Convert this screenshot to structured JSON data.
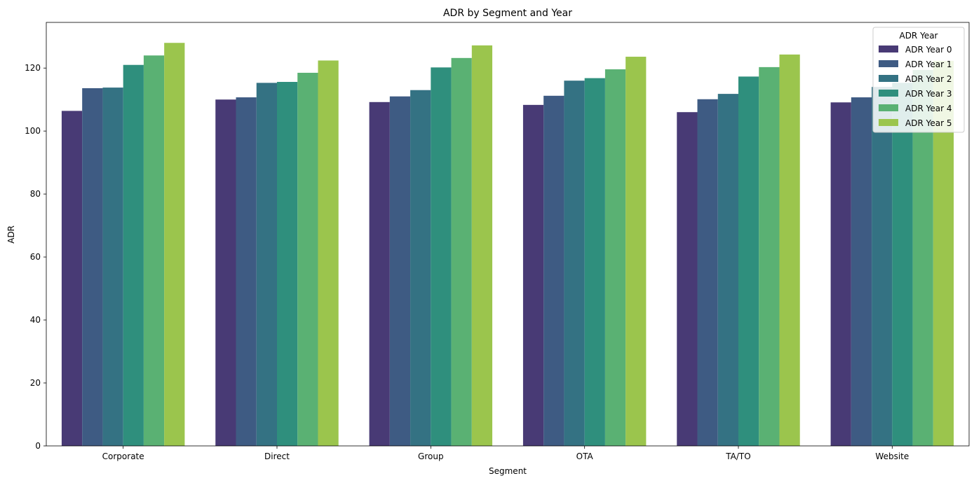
{
  "chart_data": {
    "type": "bar",
    "title": "ADR by Segment and Year",
    "xlabel": "Segment",
    "ylabel": "ADR",
    "ylim": [
      0,
      134.5
    ],
    "yticks": [
      0,
      20,
      40,
      60,
      80,
      100,
      120
    ],
    "categories": [
      "Corporate",
      "Direct",
      "Group",
      "OTA",
      "TA/TO",
      "Website"
    ],
    "legend": {
      "title": "ADR Year",
      "position": "top-right"
    },
    "series": [
      {
        "name": "ADR Year 0",
        "color": "#483a75",
        "values": [
          106.4,
          110.0,
          109.2,
          108.3,
          106.0,
          109.1
        ]
      },
      {
        "name": "ADR Year 1",
        "color": "#3e5b83",
        "values": [
          113.6,
          110.7,
          111.0,
          111.2,
          110.1,
          110.7
        ]
      },
      {
        "name": "ADR Year 2",
        "color": "#347283",
        "values": [
          113.8,
          115.3,
          113.0,
          116.0,
          111.8,
          114.0
        ]
      },
      {
        "name": "ADR Year 3",
        "color": "#2f8f7d",
        "values": [
          121.0,
          115.6,
          120.2,
          116.8,
          117.3,
          115.3
        ]
      },
      {
        "name": "ADR Year 4",
        "color": "#5ab173",
        "values": [
          124.0,
          118.5,
          123.2,
          119.6,
          120.3,
          119.4
        ]
      },
      {
        "name": "ADR Year 5",
        "color": "#9bc54d",
        "values": [
          128.0,
          122.4,
          127.2,
          123.6,
          124.3,
          122.3
        ]
      }
    ]
  }
}
